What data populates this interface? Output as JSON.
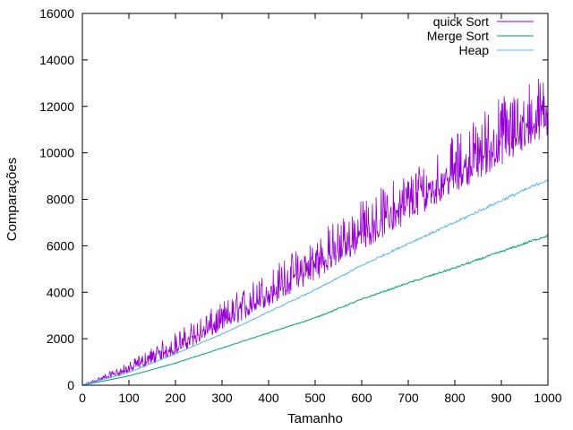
{
  "chart_data": {
    "type": "line",
    "xlabel": "Tamanho",
    "ylabel": "Comparações",
    "xlim": [
      0,
      1000
    ],
    "ylim": [
      0,
      16000
    ],
    "xticks": [
      0,
      100,
      200,
      300,
      400,
      500,
      600,
      700,
      800,
      900,
      1000
    ],
    "yticks": [
      0,
      2000,
      4000,
      6000,
      8000,
      10000,
      12000,
      14000,
      16000
    ],
    "grid": false,
    "legend_position": "top-right",
    "series": [
      {
        "name": "quick Sort",
        "color": "#9400d3",
        "x": [
          0,
          100,
          200,
          300,
          400,
          500,
          600,
          700,
          800,
          900,
          1000
        ],
        "y": [
          0,
          700,
          1650,
          2700,
          3950,
          5150,
          6500,
          7800,
          9100,
          10400,
          11600
        ],
        "y_low": [
          0,
          500,
          1300,
          2300,
          3400,
          4500,
          5800,
          7000,
          8300,
          9400,
          10700
        ],
        "y_high": [
          0,
          1000,
          2300,
          3600,
          5000,
          6500,
          8000,
          9300,
          10800,
          12600,
          13500
        ]
      },
      {
        "name": "Merge Sort",
        "color": "#009e73",
        "x": [
          0,
          100,
          200,
          300,
          400,
          500,
          600,
          700,
          800,
          900,
          1000
        ],
        "y": [
          0,
          400,
          950,
          1600,
          2250,
          2900,
          3700,
          4400,
          5050,
          5750,
          6450
        ]
      },
      {
        "name": "Heap",
        "color": "#56b4e9",
        "x": [
          0,
          100,
          200,
          300,
          400,
          500,
          600,
          700,
          800,
          900,
          1000
        ],
        "y": [
          0,
          550,
          1350,
          2200,
          3150,
          4100,
          5150,
          6100,
          7000,
          7950,
          8850
        ]
      }
    ]
  }
}
